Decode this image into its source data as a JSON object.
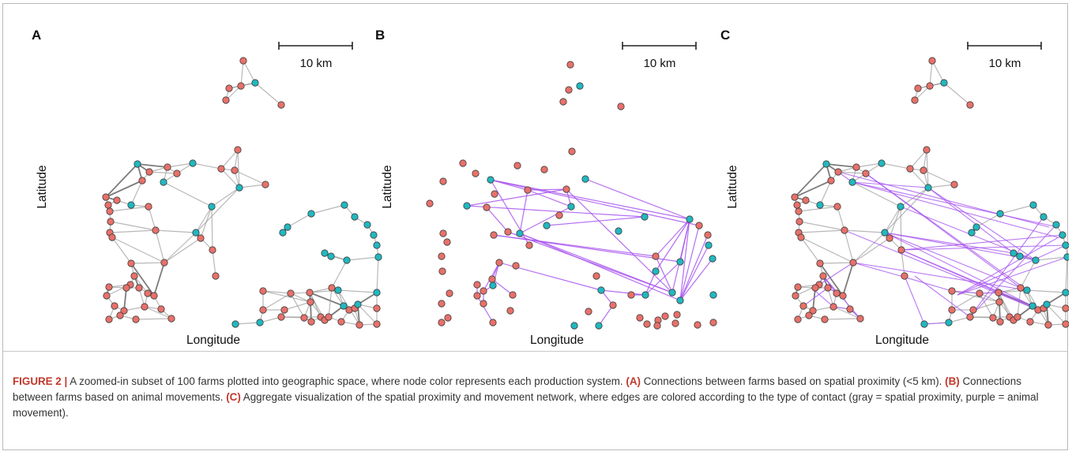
{
  "figure": {
    "scalebar_label": "10 km",
    "axis": {
      "x": "Longitude",
      "y": "Latitude"
    },
    "panels": [
      {
        "letter": "A",
        "show_spatial": true,
        "show_movement": false
      },
      {
        "letter": "B",
        "show_spatial": false,
        "show_movement": true
      },
      {
        "letter": "C",
        "show_spatial": true,
        "show_movement": true
      }
    ],
    "colors": {
      "node_red": "#e8716a",
      "node_teal": "#21b8c0",
      "node_stroke": "#3a3a3a",
      "edge_gray": "#9a9a9a",
      "edge_purple": "#a855f0"
    }
  },
  "caption": {
    "label": "FIGURE 2 |",
    "intro": " A zoomed-in subset of 100 farms plotted into geographic space, where node color represents each production system. ",
    "a_ref": "(A)",
    "a_text": " Connections between farms based on spatial proximity (<5 km). ",
    "b_ref": "(B)",
    "b_text": " Connections between farms based on animal movements. ",
    "c_ref": "(C)",
    "c_text": " Aggregate visualization of the spatial proximity and movement network, where edges are colored according to the type of contact (gray = spatial proximity, purple = animal movement)."
  }
}
